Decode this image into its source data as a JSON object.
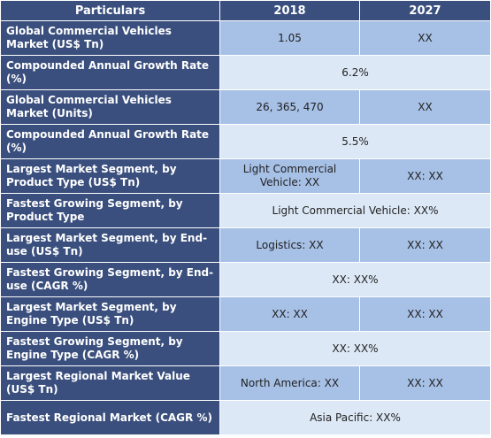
{
  "header": {
    "col1": "Particulars",
    "col2": "2018",
    "col3": "2027"
  },
  "rows": [
    {
      "label": "Global Commercial Vehicles Market (US$ Tn)",
      "v2018": "1.05",
      "v2027": "XX"
    },
    {
      "label": "Compounded Annual Growth Rate (%)",
      "span": "6.2%"
    },
    {
      "label": "Global Commercial Vehicles Market (Units)",
      "v2018": "26, 365, 470",
      "v2027": "XX"
    },
    {
      "label": "Compounded Annual Growth Rate (%)",
      "span": "5.5%"
    },
    {
      "label": "Largest Market Segment, by Product Type (US$ Tn)",
      "v2018": "Light Commercial Vehicle: XX",
      "v2027": "XX: XX"
    },
    {
      "label": "Fastest Growing Segment, by Product Type",
      "span": "Light Commercial Vehicle: XX%"
    },
    {
      "label": "Largest Market Segment, by End-use (US$ Tn)",
      "v2018": "Logistics: XX",
      "v2027": "XX: XX"
    },
    {
      "label": "Fastest Growing Segment, by End-use (CAGR %)",
      "span": "XX: XX%"
    },
    {
      "label": "Largest Market Segment, by Engine Type (US$ Tn)",
      "v2018": "XX: XX",
      "v2027": "XX: XX"
    },
    {
      "label": "Fastest Growing Segment, by Engine Type (CAGR %)",
      "span": "XX: XX%"
    },
    {
      "label": "Largest Regional Market Value (US$ Tn)",
      "v2018": "North America: XX",
      "v2027": "XX: XX"
    },
    {
      "label": "Fastest Regional Market (CAGR %)",
      "span": "Asia Pacific: XX%"
    }
  ],
  "colors": {
    "header_bg": "#3a4f7d",
    "value_blue": "#a6c0e6",
    "value_pale": "#dce8f6"
  }
}
